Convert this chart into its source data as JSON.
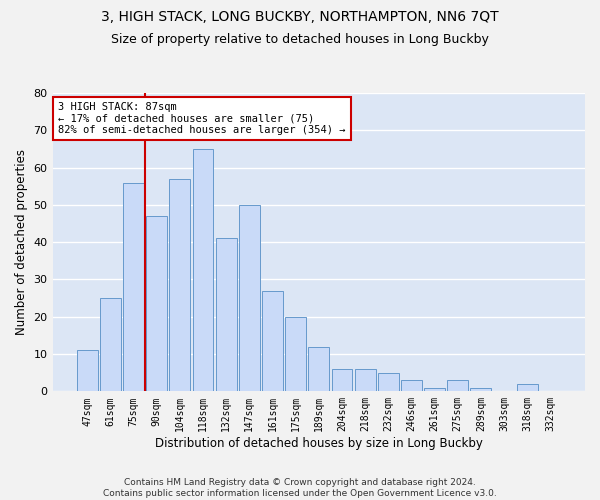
{
  "title": "3, HIGH STACK, LONG BUCKBY, NORTHAMPTON, NN6 7QT",
  "subtitle": "Size of property relative to detached houses in Long Buckby",
  "xlabel": "Distribution of detached houses by size in Long Buckby",
  "ylabel": "Number of detached properties",
  "bar_labels": [
    "47sqm",
    "61sqm",
    "75sqm",
    "90sqm",
    "104sqm",
    "118sqm",
    "132sqm",
    "147sqm",
    "161sqm",
    "175sqm",
    "189sqm",
    "204sqm",
    "218sqm",
    "232sqm",
    "246sqm",
    "261sqm",
    "275sqm",
    "289sqm",
    "303sqm",
    "318sqm",
    "332sqm"
  ],
  "bar_values": [
    11,
    25,
    56,
    47,
    57,
    65,
    41,
    50,
    27,
    20,
    12,
    6,
    6,
    5,
    3,
    1,
    3,
    1,
    0,
    2,
    0
  ],
  "bar_color": "#c9daf8",
  "bar_edge_color": "#6699cc",
  "vline_after_index": 2,
  "vline_color": "#cc0000",
  "annotation_text": "3 HIGH STACK: 87sqm\n← 17% of detached houses are smaller (75)\n82% of semi-detached houses are larger (354) →",
  "annotation_box_facecolor": "#ffffff",
  "annotation_box_edgecolor": "#cc0000",
  "ylim": [
    0,
    80
  ],
  "yticks": [
    0,
    10,
    20,
    30,
    40,
    50,
    60,
    70,
    80
  ],
  "bg_color": "#dce6f5",
  "grid_color": "#ffffff",
  "fig_facecolor": "#f2f2f2",
  "footnote": "Contains HM Land Registry data © Crown copyright and database right 2024.\nContains public sector information licensed under the Open Government Licence v3.0.",
  "title_fontsize": 10,
  "subtitle_fontsize": 9,
  "xlabel_fontsize": 8.5,
  "ylabel_fontsize": 8.5,
  "tick_fontsize": 7,
  "annotation_fontsize": 7.5,
  "footnote_fontsize": 6.5
}
